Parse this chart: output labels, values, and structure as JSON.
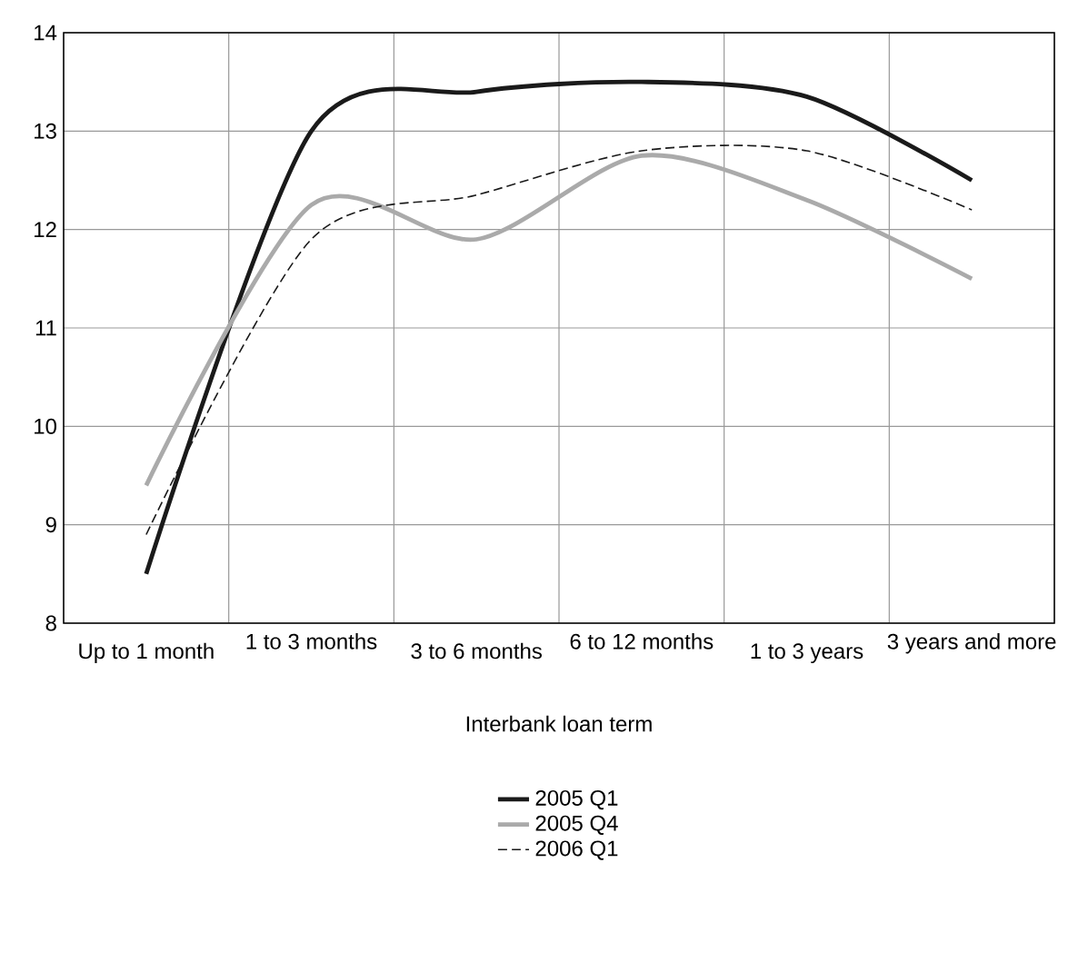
{
  "chart_data": {
    "type": "line",
    "xlabel": "Interbank loan term",
    "categories": [
      "Up to 1 month",
      "1 to 3 months",
      "3 to 6 months",
      "6 to 12 months",
      "1 to 3 years",
      "3 years and more"
    ],
    "series": [
      {
        "name": "2005 Q1",
        "color": "#1a1a1a",
        "values": [
          8.5,
          13.0,
          13.4,
          13.5,
          13.35,
          12.5
        ]
      },
      {
        "name": "2005 Q4",
        "color": "#aaaaaa",
        "values": [
          9.4,
          12.25,
          11.9,
          12.75,
          12.3,
          11.5
        ]
      },
      {
        "name": "2006 Q1",
        "color": "#1a1a1a",
        "line_style": "dashed",
        "values": [
          8.9,
          11.9,
          12.35,
          12.8,
          12.8,
          12.2
        ]
      }
    ],
    "ylim": [
      8,
      14
    ],
    "yticks": [
      8,
      9,
      10,
      11,
      12,
      13,
      14
    ],
    "grid": true,
    "legend": "bottom",
    "line_style": "solid",
    "marker": "none"
  }
}
